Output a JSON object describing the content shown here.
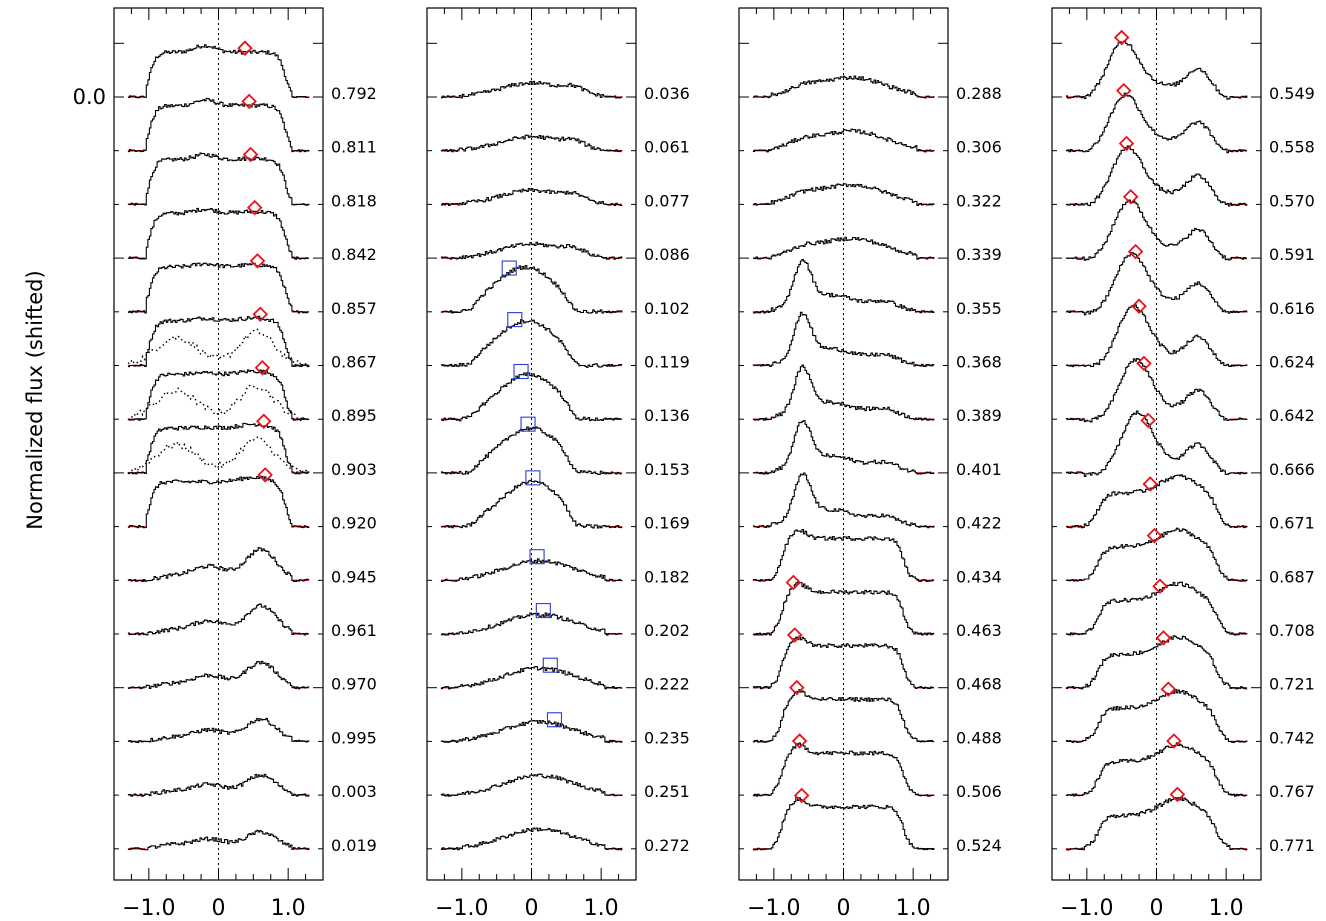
{
  "chart_data": {
    "type": "line",
    "ylabel": "Normalized flux (shifted)",
    "y_tick_labels": [
      {
        "value": 0.0,
        "label": "0.0"
      }
    ],
    "xlim": [
      -1.5,
      1.5
    ],
    "x_ticks": [
      {
        "value": -1.0,
        "label": "−1.0"
      },
      {
        "value": 0.0,
        "label": "0"
      },
      {
        "value": 1.0,
        "label": "1.0"
      }
    ],
    "colors": {
      "profile": "#000000",
      "continuum": "#e8131a",
      "diamond_marker": "#e8131a",
      "square_marker": "#2a3fd6",
      "axes": "#000000"
    },
    "grid": false,
    "panels": [
      {
        "phases": [
          "0.792",
          "0.811",
          "0.818",
          "0.842",
          "0.857",
          "0.867",
          "0.895",
          "0.903",
          "0.920",
          "0.945",
          "0.961",
          "0.970",
          "0.995",
          "0.003",
          "0.019"
        ],
        "marker_type": "diamond",
        "markers": [
          {
            "row": 0,
            "x": 0.38
          },
          {
            "row": 1,
            "x": 0.44
          },
          {
            "row": 2,
            "x": 0.46
          },
          {
            "row": 3,
            "x": 0.52
          },
          {
            "row": 4,
            "x": 0.56
          },
          {
            "row": 5,
            "x": 0.6
          },
          {
            "row": 6,
            "x": 0.63
          },
          {
            "row": 7,
            "x": 0.65
          },
          {
            "row": 8,
            "x": 0.67
          }
        ],
        "dotted_profiles": [
          5,
          6,
          7
        ]
      },
      {
        "phases": [
          "0.036",
          "0.061",
          "0.077",
          "0.086",
          "0.102",
          "0.119",
          "0.136",
          "0.153",
          "0.169",
          "0.182",
          "0.202",
          "0.222",
          "0.235",
          "0.251",
          "0.272"
        ],
        "marker_type": "square",
        "markers": [
          {
            "row": 4,
            "x": -0.32
          },
          {
            "row": 5,
            "x": -0.24
          },
          {
            "row": 6,
            "x": -0.15
          },
          {
            "row": 7,
            "x": -0.05
          },
          {
            "row": 8,
            "x": 0.02
          },
          {
            "row": 9,
            "x": 0.08
          },
          {
            "row": 10,
            "x": 0.17
          },
          {
            "row": 11,
            "x": 0.27
          },
          {
            "row": 12,
            "x": 0.33
          }
        ],
        "dotted_profiles": []
      },
      {
        "phases": [
          "0.288",
          "0.306",
          "0.322",
          "0.339",
          "0.355",
          "0.368",
          "0.389",
          "0.401",
          "0.422",
          "0.434",
          "0.463",
          "0.468",
          "0.488",
          "0.506",
          "0.524"
        ],
        "marker_type": "diamond",
        "markers": [
          {
            "row": 10,
            "x": -0.72
          },
          {
            "row": 11,
            "x": -0.7
          },
          {
            "row": 12,
            "x": -0.67
          },
          {
            "row": 13,
            "x": -0.63
          },
          {
            "row": 14,
            "x": -0.6
          }
        ],
        "dotted_profiles": []
      },
      {
        "phases": [
          "0.549",
          "0.558",
          "0.570",
          "0.591",
          "0.616",
          "0.624",
          "0.642",
          "0.666",
          "0.671",
          "0.687",
          "0.708",
          "0.721",
          "0.742",
          "0.767",
          "0.771"
        ],
        "marker_type": "diamond",
        "markers": [
          {
            "row": 0,
            "x": -0.5
          },
          {
            "row": 1,
            "x": -0.47
          },
          {
            "row": 2,
            "x": -0.43
          },
          {
            "row": 3,
            "x": -0.37
          },
          {
            "row": 4,
            "x": -0.3
          },
          {
            "row": 5,
            "x": -0.25
          },
          {
            "row": 6,
            "x": -0.18
          },
          {
            "row": 7,
            "x": -0.12
          },
          {
            "row": 8,
            "x": -0.09
          },
          {
            "row": 9,
            "x": -0.03
          },
          {
            "row": 10,
            "x": 0.05
          },
          {
            "row": 11,
            "x": 0.1
          },
          {
            "row": 12,
            "x": 0.17
          },
          {
            "row": 13,
            "x": 0.25
          },
          {
            "row": 14,
            "x": 0.3
          }
        ],
        "dotted_profiles": []
      }
    ]
  }
}
